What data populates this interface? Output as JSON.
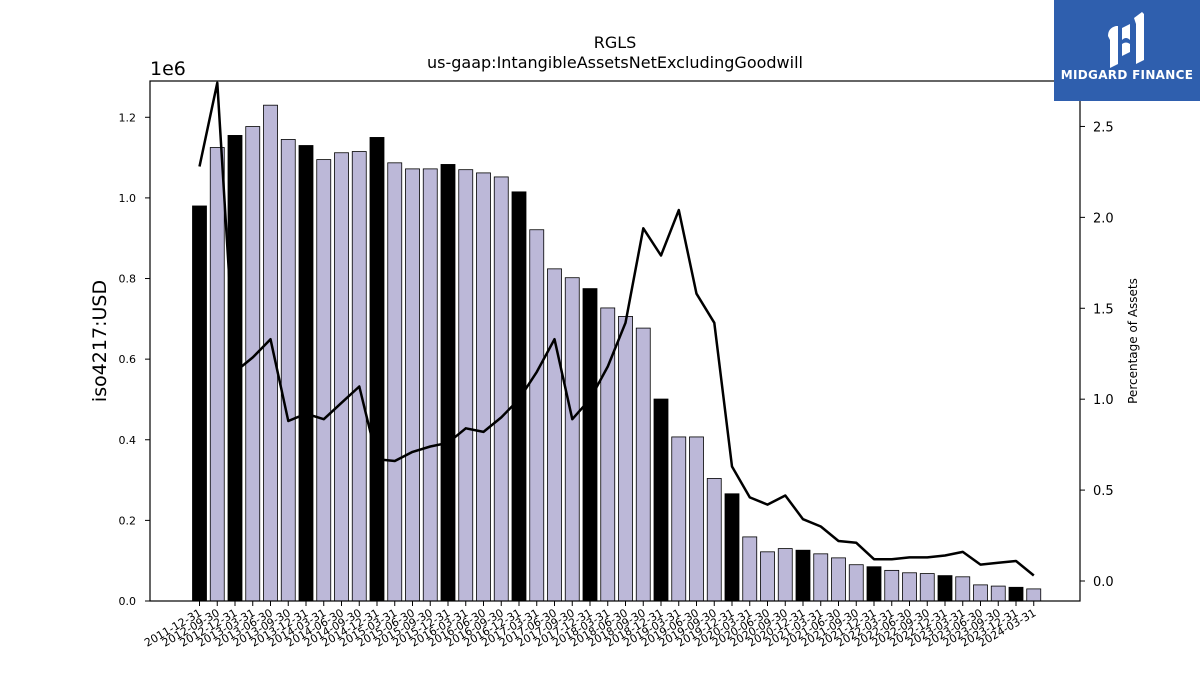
{
  "chart_data": {
    "type": "bar",
    "title": "RGLS",
    "subtitle": "us-gaap:IntangibleAssetsNetExcludingGoodwill",
    "ylabel": "iso4217:USD",
    "y_offset_label": "1e6",
    "y2label": "Percentage of Assets",
    "ylim": [
      0,
      1.29
    ],
    "y2lim": [
      -0.11,
      2.75
    ],
    "yticks": [
      "0.0",
      "0.2",
      "0.4",
      "0.6",
      "0.8",
      "1.0",
      "1.2"
    ],
    "y2ticks": [
      "0.0",
      "0.5",
      "1.0",
      "1.5",
      "2.0",
      "2.5"
    ],
    "grid": false,
    "colors": {
      "annual_bar": "#000000",
      "quarter_bar": "#bcb8d8",
      "bar_edge": "#000000",
      "line": "#000000"
    },
    "categories": [
      "2011-12-31",
      "2012-09-30",
      "2012-12-31",
      "2013-03-31",
      "2013-06-30",
      "2013-09-30",
      "2013-12-31",
      "2014-03-31",
      "2014-06-30",
      "2014-09-30",
      "2014-12-31",
      "2015-03-31",
      "2015-06-30",
      "2015-09-30",
      "2015-12-31",
      "2016-03-31",
      "2016-06-30",
      "2016-09-30",
      "2016-12-31",
      "2017-03-31",
      "2017-06-30",
      "2017-09-30",
      "2017-12-31",
      "2018-03-31",
      "2018-06-30",
      "2018-09-30",
      "2018-12-31",
      "2019-03-31",
      "2019-06-30",
      "2019-09-30",
      "2019-12-31",
      "2020-03-31",
      "2020-06-30",
      "2020-09-30",
      "2020-12-31",
      "2021-03-31",
      "2021-06-30",
      "2021-09-30",
      "2021-12-31",
      "2022-03-31",
      "2022-06-30",
      "2022-09-30",
      "2022-12-31",
      "2023-03-31",
      "2023-06-30",
      "2023-09-30",
      "2023-12-31",
      "2024-03-31"
    ],
    "series": [
      {
        "type": "bar",
        "values": [
          0.98,
          1.125,
          1.155,
          1.177,
          1.23,
          1.145,
          1.13,
          1.095,
          1.112,
          1.115,
          1.15,
          1.087,
          1.072,
          1.072,
          1.083,
          1.07,
          1.062,
          1.052,
          1.015,
          0.921,
          0.824,
          0.802,
          0.775,
          0.727,
          0.706,
          0.677,
          0.501,
          0.407,
          0.407,
          0.304,
          0.266,
          0.159,
          0.122,
          0.13,
          0.126,
          0.117,
          0.107,
          0.09,
          0.085,
          0.076,
          0.07,
          0.068,
          0.063,
          0.06,
          0.04,
          0.037,
          0.034,
          0.03
        ],
        "annual": [
          true,
          false,
          true,
          false,
          false,
          false,
          true,
          false,
          false,
          false,
          true,
          false,
          false,
          false,
          true,
          false,
          false,
          false,
          true,
          false,
          false,
          false,
          true,
          false,
          false,
          false,
          true,
          false,
          false,
          false,
          true,
          false,
          false,
          false,
          true,
          false,
          false,
          false,
          true,
          false,
          false,
          false,
          true,
          false,
          false,
          false,
          true,
          false
        ]
      },
      {
        "type": "line",
        "axis": "right",
        "values": [
          2.28,
          2.74,
          1.15,
          1.23,
          1.33,
          0.88,
          0.92,
          0.89,
          0.98,
          1.07,
          0.67,
          0.66,
          0.71,
          0.74,
          0.76,
          0.84,
          0.82,
          0.9,
          1.0,
          1.15,
          1.33,
          0.89,
          1.0,
          1.18,
          1.42,
          1.94,
          1.79,
          2.04,
          1.58,
          1.42,
          0.63,
          0.46,
          0.42,
          0.47,
          0.34,
          0.3,
          0.22,
          0.21,
          0.12,
          0.12,
          0.13,
          0.13,
          0.14,
          0.16,
          0.09,
          0.1,
          0.11,
          0.03
        ]
      }
    ]
  },
  "logo": {
    "text": "MIDGARD FINANCE"
  }
}
